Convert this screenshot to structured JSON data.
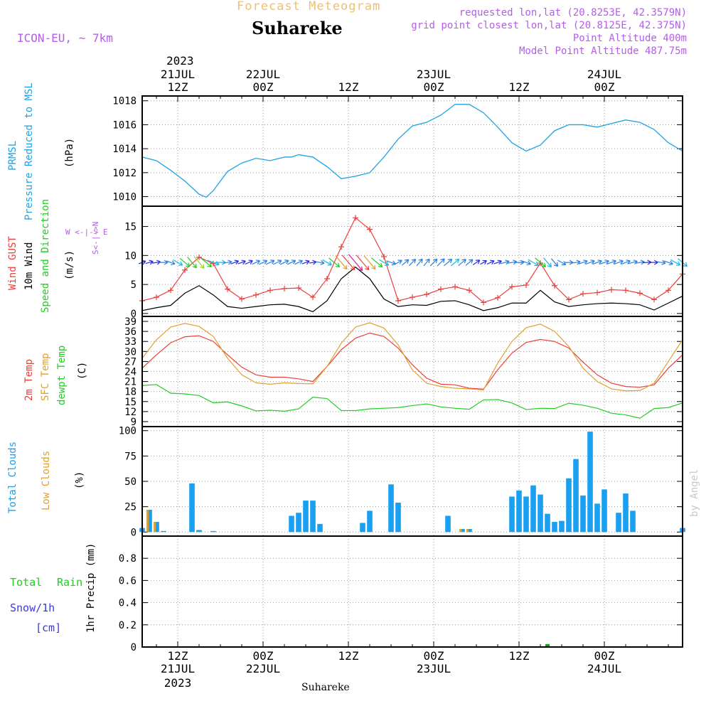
{
  "header": {
    "top_title": "Forecast Meteogram",
    "place": "Suhareke",
    "model": "ICON-EU, ~ 7km",
    "requested": "requested lon,lat (20.8253E, 42.3579N)",
    "grid_point": "grid point closest lon,lat (20.8125E, 42.375N)",
    "point_alt": "Point Altitude 400m",
    "model_alt": "Model Point Altitude 487.75m",
    "watermark": "by Angel",
    "footer_place": "Suhareke"
  },
  "colors": {
    "pressure": "#1fa3e6",
    "gust": "#e8403c",
    "wind": "#000000",
    "temp": "#e8403c",
    "sfc": "#e0a030",
    "dew": "#22cc22",
    "clouds": "#1aa0f0",
    "low_clouds": "#e0a030",
    "rain": "#229922",
    "snow": "#3a3ad8",
    "label_purple": "#b45ee8",
    "title_orange": "#f0c070"
  },
  "time_axis": {
    "top_year": "2023",
    "top": [
      {
        "h": 9,
        "d": "21JUL",
        "z": "12Z"
      },
      {
        "h": 21,
        "d": "22JUL",
        "z": "00Z"
      },
      {
        "h": 33,
        "d": "",
        "z": "12Z"
      },
      {
        "h": 45,
        "d": "23JUL",
        "z": "00Z"
      },
      {
        "h": 57,
        "d": "",
        "z": "12Z"
      },
      {
        "h": 69,
        "d": "24JUL",
        "z": "00Z"
      }
    ],
    "bottom": [
      {
        "h": 9,
        "z": "12Z",
        "d": "21JUL"
      },
      {
        "h": 21,
        "z": "00Z",
        "d": "22JUL"
      },
      {
        "h": 33,
        "z": "12Z",
        "d": ""
      },
      {
        "h": 45,
        "z": "00Z",
        "d": "23JUL"
      },
      {
        "h": 57,
        "z": "12Z",
        "d": ""
      },
      {
        "h": 69,
        "z": "00Z",
        "d": "24JUL"
      }
    ],
    "bottom_year": "2023",
    "start_hour": 4,
    "end_hour": 80
  },
  "labels": {
    "prmsl": "PRMSL",
    "prmsl_long": "Pressure Reduced to MSL",
    "hpa": "(hPa)",
    "gust": "Wind GUST",
    "wind10": "10m Wind",
    "speed_dir": "Speed and Direction",
    "ms": "(m/s)",
    "compass_ns": "S<-|->N",
    "compass_we": "W <-|-> E",
    "t2m": "2m Temp",
    "sfc": "SFC Temp",
    "dew": "dewpt Temp",
    "c": "(C)",
    "total_clouds": "Total Clouds",
    "low_clouds": "Low Clouds",
    "pct": "(%)",
    "precip": "1hr Precip (mm)",
    "total": "Total",
    "rain": "Rain",
    "snow": "Snow/1h",
    "cm": "[cm]"
  },
  "chart_data": [
    {
      "type": "line",
      "title": "PRMSL Pressure Reduced to MSL",
      "ylabel": "(hPa)",
      "ylim": [
        1009.2,
        1018.4
      ],
      "yticks": [
        1010,
        1012,
        1014,
        1016,
        1018
      ],
      "x_hours": [
        4,
        6,
        8,
        10,
        12,
        13,
        14,
        16,
        18,
        20,
        22,
        24,
        25,
        26,
        28,
        30,
        32,
        34,
        36,
        38,
        40,
        42,
        44,
        46,
        48,
        50,
        52,
        54,
        56,
        58,
        60,
        62,
        64,
        66,
        68,
        70,
        72,
        74,
        76,
        78,
        80
      ],
      "series": [
        {
          "name": "PRMSL",
          "values": [
            1013.3,
            1013.0,
            1012.2,
            1011.3,
            1010.2,
            1009.95,
            1010.5,
            1012.1,
            1012.8,
            1013.2,
            1013.0,
            1013.3,
            1013.3,
            1013.5,
            1013.3,
            1012.5,
            1011.5,
            1011.7,
            1012.0,
            1013.3,
            1014.8,
            1015.9,
            1016.2,
            1016.8,
            1017.7,
            1017.7,
            1017.0,
            1015.8,
            1014.5,
            1013.8,
            1014.3,
            1015.5,
            1016.0,
            1016.0,
            1015.8,
            1016.1,
            1016.4,
            1016.2,
            1015.6,
            1014.5,
            1013.8
          ]
        }
      ]
    },
    {
      "type": "line",
      "title": "Wind GUST / 10m Wind Speed and Direction",
      "ylabel": "(m/s)",
      "ylim": [
        -0.5,
        18.5
      ],
      "yticks": [
        0,
        5,
        10,
        15
      ],
      "x_hours": [
        4,
        6,
        8,
        10,
        12,
        14,
        16,
        18,
        20,
        22,
        24,
        26,
        28,
        30,
        32,
        34,
        36,
        38,
        40,
        42,
        44,
        46,
        48,
        50,
        52,
        54,
        56,
        58,
        60,
        62,
        64,
        66,
        68,
        70,
        72,
        74,
        76,
        78,
        80
      ],
      "series": [
        {
          "name": "Wind GUST",
          "values": [
            2.2,
            2.8,
            4.0,
            7.5,
            9.7,
            8.6,
            4.2,
            2.5,
            3.2,
            4.0,
            4.3,
            4.4,
            2.8,
            6.0,
            11.5,
            16.5,
            14.5,
            9.8,
            2.2,
            2.8,
            3.3,
            4.2,
            4.6,
            4.0,
            1.9,
            2.7,
            4.6,
            4.9,
            8.7,
            4.8,
            2.4,
            3.4,
            3.6,
            4.1,
            4.0,
            3.5,
            2.4,
            4.0,
            6.8
          ]
        },
        {
          "name": "10m Wind",
          "values": [
            0.5,
            1.0,
            1.4,
            3.5,
            4.8,
            3.2,
            1.2,
            0.9,
            1.2,
            1.5,
            1.6,
            1.2,
            0.3,
            2.2,
            6.0,
            8.0,
            6.0,
            2.5,
            1.2,
            1.5,
            1.4,
            2.1,
            2.2,
            1.5,
            0.5,
            1.0,
            1.8,
            1.8,
            4.0,
            2.0,
            1.2,
            1.5,
            1.7,
            1.8,
            1.7,
            1.5,
            0.6,
            1.8,
            3.0
          ]
        }
      ],
      "arrows": {
        "x_hours": [
          4,
          5,
          6,
          7,
          8,
          9,
          10,
          11,
          12,
          13,
          14,
          15,
          16,
          17,
          18,
          19,
          20,
          21,
          22,
          23,
          24,
          25,
          26,
          27,
          28,
          29,
          30,
          31,
          32,
          33,
          34,
          35,
          36,
          37,
          38,
          39,
          40,
          41,
          42,
          43,
          44,
          45,
          46,
          47,
          48,
          49,
          50,
          51,
          52,
          53,
          54,
          55,
          56,
          57,
          58,
          59,
          60,
          61,
          62,
          63,
          64,
          65,
          66,
          67,
          68,
          69,
          70,
          71,
          72,
          73,
          74,
          75,
          76,
          77,
          78,
          79,
          80
        ],
        "dir_deg": [
          250,
          255,
          260,
          270,
          290,
          300,
          310,
          320,
          320,
          310,
          290,
          270,
          260,
          250,
          250,
          245,
          245,
          245,
          245,
          245,
          245,
          245,
          245,
          250,
          260,
          280,
          300,
          310,
          320,
          320,
          320,
          320,
          320,
          310,
          300,
          290,
          240,
          230,
          225,
          220,
          220,
          225,
          225,
          230,
          230,
          230,
          230,
          235,
          240,
          245,
          250,
          255,
          260,
          270,
          290,
          300,
          310,
          320,
          320,
          300,
          270,
          260,
          250,
          250,
          250,
          250,
          250,
          250,
          250,
          255,
          260,
          265,
          270,
          280,
          290,
          300,
          310
        ]
      }
    },
    {
      "type": "line",
      "title": "2m Temp / SFC Temp / dewpt Temp",
      "ylabel": "(C)",
      "ylim": [
        7.5,
        40.5
      ],
      "yticks": [
        9,
        12,
        15,
        18,
        21,
        24,
        27,
        30,
        33,
        36,
        39
      ],
      "x_hours": [
        4,
        6,
        8,
        10,
        12,
        14,
        16,
        18,
        20,
        22,
        24,
        26,
        28,
        30,
        32,
        34,
        36,
        38,
        40,
        42,
        44,
        46,
        48,
        50,
        52,
        54,
        56,
        58,
        60,
        62,
        64,
        66,
        68,
        70,
        72,
        74,
        76,
        78,
        80
      ],
      "series": [
        {
          "name": "2m Temp",
          "values": [
            25.0,
            29.0,
            32.6,
            34.4,
            34.7,
            33.0,
            29.0,
            25.3,
            23.0,
            22.3,
            22.3,
            21.8,
            21.0,
            25.5,
            30.5,
            34.0,
            35.5,
            34.5,
            31.0,
            26.0,
            22.0,
            20.2,
            20.0,
            19.0,
            18.7,
            24.5,
            29.5,
            32.7,
            33.6,
            33.0,
            31.0,
            26.8,
            23.0,
            20.5,
            19.5,
            19.3,
            20.0,
            25.0,
            29.0
          ]
        },
        {
          "name": "SFC Temp",
          "values": [
            28.0,
            33.5,
            37.3,
            38.4,
            37.5,
            34.5,
            28.0,
            23.0,
            20.6,
            20.2,
            20.6,
            20.4,
            20.3,
            25.5,
            32.5,
            37.3,
            38.6,
            37.0,
            32.0,
            24.5,
            20.5,
            19.5,
            19.0,
            18.8,
            18.5,
            26.5,
            33.0,
            37.1,
            38.2,
            36.0,
            31.5,
            25.0,
            21.0,
            18.8,
            18.2,
            18.3,
            20.5,
            27.0,
            33.5
          ]
        },
        {
          "name": "dewpt Temp",
          "values": [
            19.8,
            20.1,
            17.5,
            17.3,
            16.8,
            14.6,
            14.9,
            13.7,
            12.2,
            12.4,
            12.1,
            12.8,
            16.3,
            15.9,
            12.3,
            12.3,
            12.8,
            13.0,
            13.2,
            13.8,
            14.3,
            13.4,
            13.0,
            12.7,
            15.5,
            15.6,
            14.6,
            12.6,
            13.0,
            12.9,
            14.5,
            13.9,
            13.0,
            11.5,
            11.0,
            10.0,
            12.9,
            13.2,
            14.6
          ]
        }
      ]
    },
    {
      "type": "bar",
      "title": "Total Clouds / Low Clouds",
      "ylabel": "(%)",
      "ylim": [
        -4,
        104
      ],
      "yticks": [
        0,
        25,
        50,
        75,
        100
      ],
      "x_hours": [
        4,
        5,
        6,
        7,
        8,
        9,
        10,
        11,
        12,
        13,
        14,
        15,
        16,
        17,
        18,
        19,
        20,
        21,
        22,
        23,
        24,
        25,
        26,
        27,
        28,
        29,
        30,
        31,
        32,
        33,
        34,
        35,
        36,
        37,
        38,
        39,
        40,
        41,
        42,
        43,
        44,
        45,
        46,
        47,
        48,
        49,
        50,
        51,
        52,
        53,
        54,
        55,
        56,
        57,
        58,
        59,
        60,
        61,
        62,
        63,
        64,
        65,
        66,
        67,
        68,
        69,
        70,
        71,
        72,
        73,
        74,
        75,
        76,
        77,
        78,
        79,
        80
      ],
      "series": [
        {
          "name": "Total Clouds",
          "values": [
            4,
            22,
            10,
            1,
            0,
            0,
            0,
            48,
            2,
            0,
            1,
            0,
            0,
            0,
            0,
            0,
            0,
            0,
            0,
            0,
            0,
            16,
            19,
            31,
            31,
            8,
            0,
            0,
            0,
            0,
            0,
            9,
            21,
            0,
            0,
            47,
            29,
            0,
            0,
            0,
            0,
            0,
            0,
            16,
            0,
            3,
            3,
            0,
            0,
            0,
            0,
            0,
            35,
            41,
            35,
            46,
            37,
            18,
            10,
            11,
            53,
            72,
            36,
            99,
            28,
            42,
            0,
            19,
            38,
            21,
            0,
            0,
            0,
            0,
            0,
            0,
            4
          ]
        },
        {
          "name": "Low Clouds",
          "values": [
            0,
            22,
            10,
            0,
            0,
            0,
            0,
            0,
            0,
            0,
            0,
            0,
            0,
            0,
            0,
            0,
            0,
            0,
            0,
            0,
            0,
            0,
            0,
            0,
            0,
            0,
            0,
            0,
            0,
            0,
            0,
            0,
            0,
            0,
            0,
            0,
            0,
            0,
            0,
            0,
            0,
            0,
            0,
            0,
            0,
            3,
            3,
            0,
            0,
            0,
            0,
            0,
            0,
            0,
            0,
            0,
            0,
            0,
            0,
            0,
            0,
            0,
            0,
            0,
            0,
            0,
            0,
            0,
            0,
            0,
            0,
            0,
            0,
            0,
            0,
            0,
            0
          ]
        }
      ]
    },
    {
      "type": "bar",
      "title": "1hr Precip",
      "ylabel": "1hr Precip (mm)",
      "ylim": [
        0,
        1.0
      ],
      "yticks": [
        0,
        0.2,
        0.4,
        0.6,
        0.8
      ],
      "x_hours": [
        61
      ],
      "series": [
        {
          "name": "Total Rain",
          "values": [
            0.02
          ]
        },
        {
          "name": "Snow/1h [cm]",
          "values": [
            0
          ]
        }
      ]
    }
  ]
}
